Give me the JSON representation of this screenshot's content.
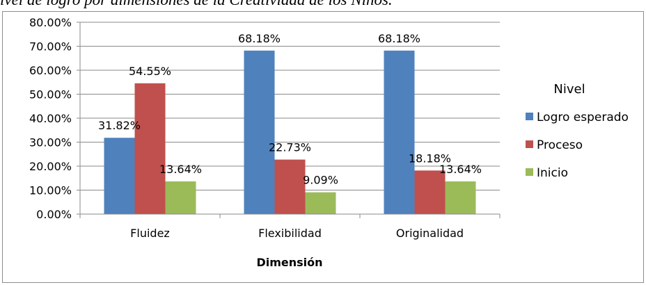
{
  "caption": "ivel de logro por dimensiones de la Creatividad de los Niños.",
  "chart_data": {
    "type": "bar",
    "categories": [
      "Fluidez",
      "Flexibilidad",
      "Originalidad"
    ],
    "series": [
      {
        "name": "Logro esperado",
        "values": [
          31.82,
          68.18,
          68.18
        ],
        "labels": [
          "31.82%",
          "68.18%",
          "68.18%"
        ],
        "color": "#4f81bd"
      },
      {
        "name": "Proceso",
        "values": [
          54.55,
          22.73,
          18.18
        ],
        "labels": [
          "54.55%",
          "22.73%",
          "18.18%"
        ],
        "color": "#c0504d"
      },
      {
        "name": "Inicio",
        "values": [
          13.64,
          9.09,
          13.64
        ],
        "labels": [
          "13.64%",
          "9.09%",
          "13.64%"
        ],
        "color": "#9bbb59"
      }
    ],
    "xlabel": "Dimensión",
    "ylabel": "",
    "ylim": [
      0,
      80
    ],
    "yticks": [
      "0.00%",
      "10.00%",
      "20.00%",
      "30.00%",
      "40.00%",
      "50.00%",
      "60.00%",
      "70.00%",
      "80.00%"
    ],
    "legend_title": "Nivel",
    "legend_position": "right",
    "grid": true
  }
}
